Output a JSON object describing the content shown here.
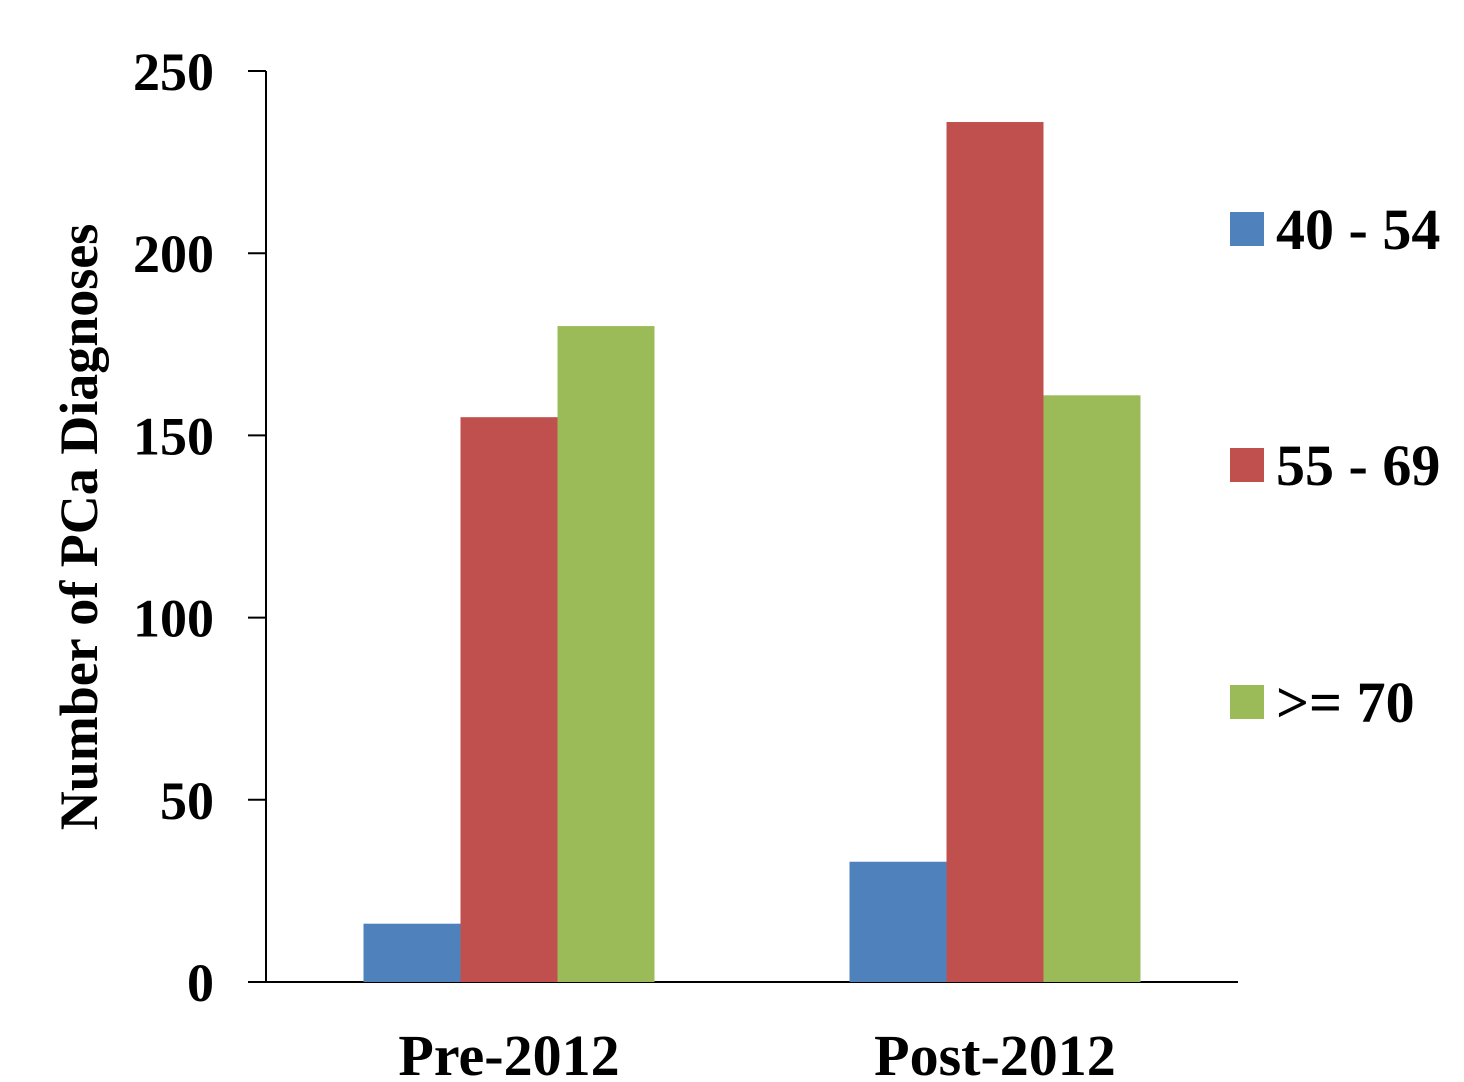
{
  "chart_data": {
    "type": "bar",
    "title": "",
    "xlabel": "",
    "ylabel": "Number of PCa Diagnoses",
    "categories": [
      "Pre-2012",
      "Post-2012"
    ],
    "series": [
      {
        "name": "40 - 54",
        "values": [
          16,
          33
        ],
        "color": "#4F81BD"
      },
      {
        "name": "55 - 69",
        "values": [
          155,
          236
        ],
        "color": "#C0504D"
      },
      {
        "name": ">= 70",
        "values": [
          180,
          161
        ],
        "color": "#9BBB59"
      }
    ],
    "ylim": [
      0,
      250
    ],
    "yticks": [
      0,
      50,
      100,
      150,
      200,
      250
    ],
    "grid": false,
    "legend_position": "right"
  }
}
